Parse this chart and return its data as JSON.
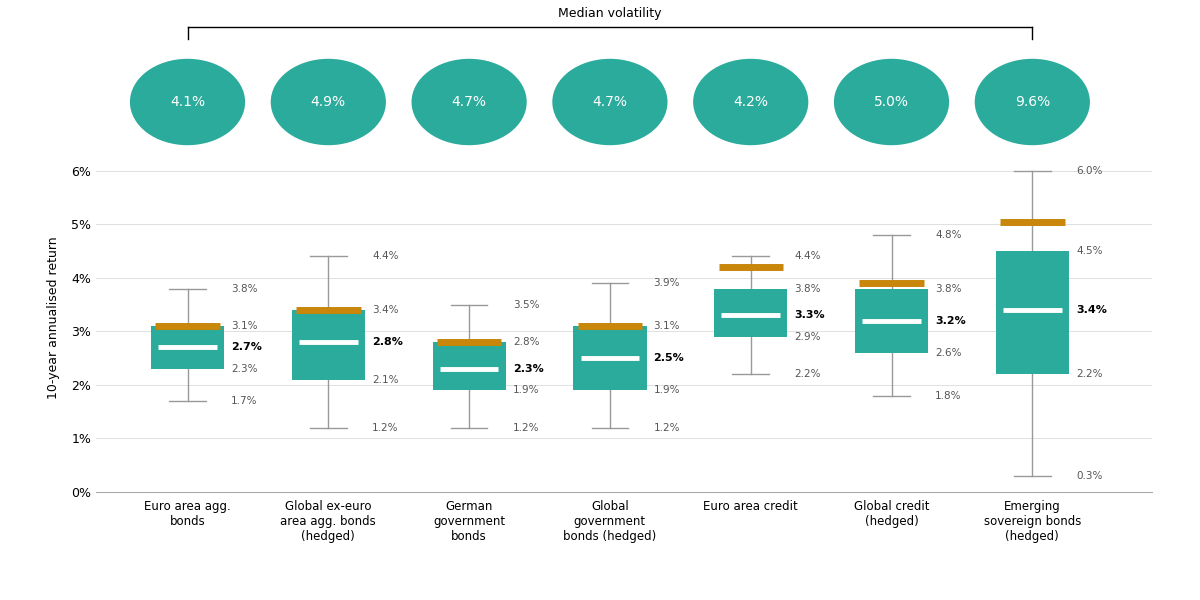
{
  "categories": [
    "Euro area agg.\nbonds",
    "Global ex-euro\narea agg. bonds\n(hedged)",
    "German\ngovernment\nbonds",
    "Global\ngovernment\nbonds (hedged)",
    "Euro area credit",
    "Global credit\n(hedged)",
    "Emerging\nsovereign bonds\n(hedged)"
  ],
  "box_data": [
    {
      "whisker_low": 1.7,
      "q1": 2.3,
      "median": 2.7,
      "q3": 3.1,
      "whisker_high": 3.8,
      "mean": 3.1
    },
    {
      "whisker_low": 1.2,
      "q1": 2.1,
      "median": 2.8,
      "q3": 3.4,
      "whisker_high": 4.4,
      "mean": 3.4
    },
    {
      "whisker_low": 1.2,
      "q1": 1.9,
      "median": 2.3,
      "q3": 2.8,
      "whisker_high": 3.5,
      "mean": 2.8
    },
    {
      "whisker_low": 1.2,
      "q1": 1.9,
      "median": 2.5,
      "q3": 3.1,
      "whisker_high": 3.9,
      "mean": 3.1
    },
    {
      "whisker_low": 2.2,
      "q1": 2.9,
      "median": 3.3,
      "q3": 3.8,
      "whisker_high": 4.4,
      "mean": 4.2
    },
    {
      "whisker_low": 1.8,
      "q1": 2.6,
      "median": 3.2,
      "q3": 3.8,
      "whisker_high": 4.8,
      "mean": 3.9
    },
    {
      "whisker_low": 0.3,
      "q1": 2.2,
      "median": 3.4,
      "q3": 4.5,
      "whisker_high": 6.0,
      "mean": 5.05
    }
  ],
  "median_labels": [
    "2.7%",
    "2.8%",
    "2.3%",
    "2.5%",
    "3.3%",
    "3.2%",
    "3.4%"
  ],
  "volatility": [
    "4.1%",
    "4.9%",
    "4.7%",
    "4.7%",
    "4.2%",
    "5.0%",
    "9.6%"
  ],
  "box_color": "#2aab9b",
  "whisker_color": "#999999",
  "mean_color": "#c8860a",
  "median_line_color": "#ffffff",
  "ylabel": "10-year annualised return",
  "ylim": [
    0.0,
    6.5
  ],
  "yticks": [
    0.0,
    1.0,
    2.0,
    3.0,
    4.0,
    5.0,
    6.0
  ],
  "ytick_labels": [
    "0%",
    "1%",
    "2%",
    "3%",
    "4%",
    "5%",
    "6%"
  ],
  "background_color": "#ffffff",
  "volatility_circle_color": "#2aab9b",
  "volatility_text_color": "#ffffff",
  "annotation_color": "#444444"
}
